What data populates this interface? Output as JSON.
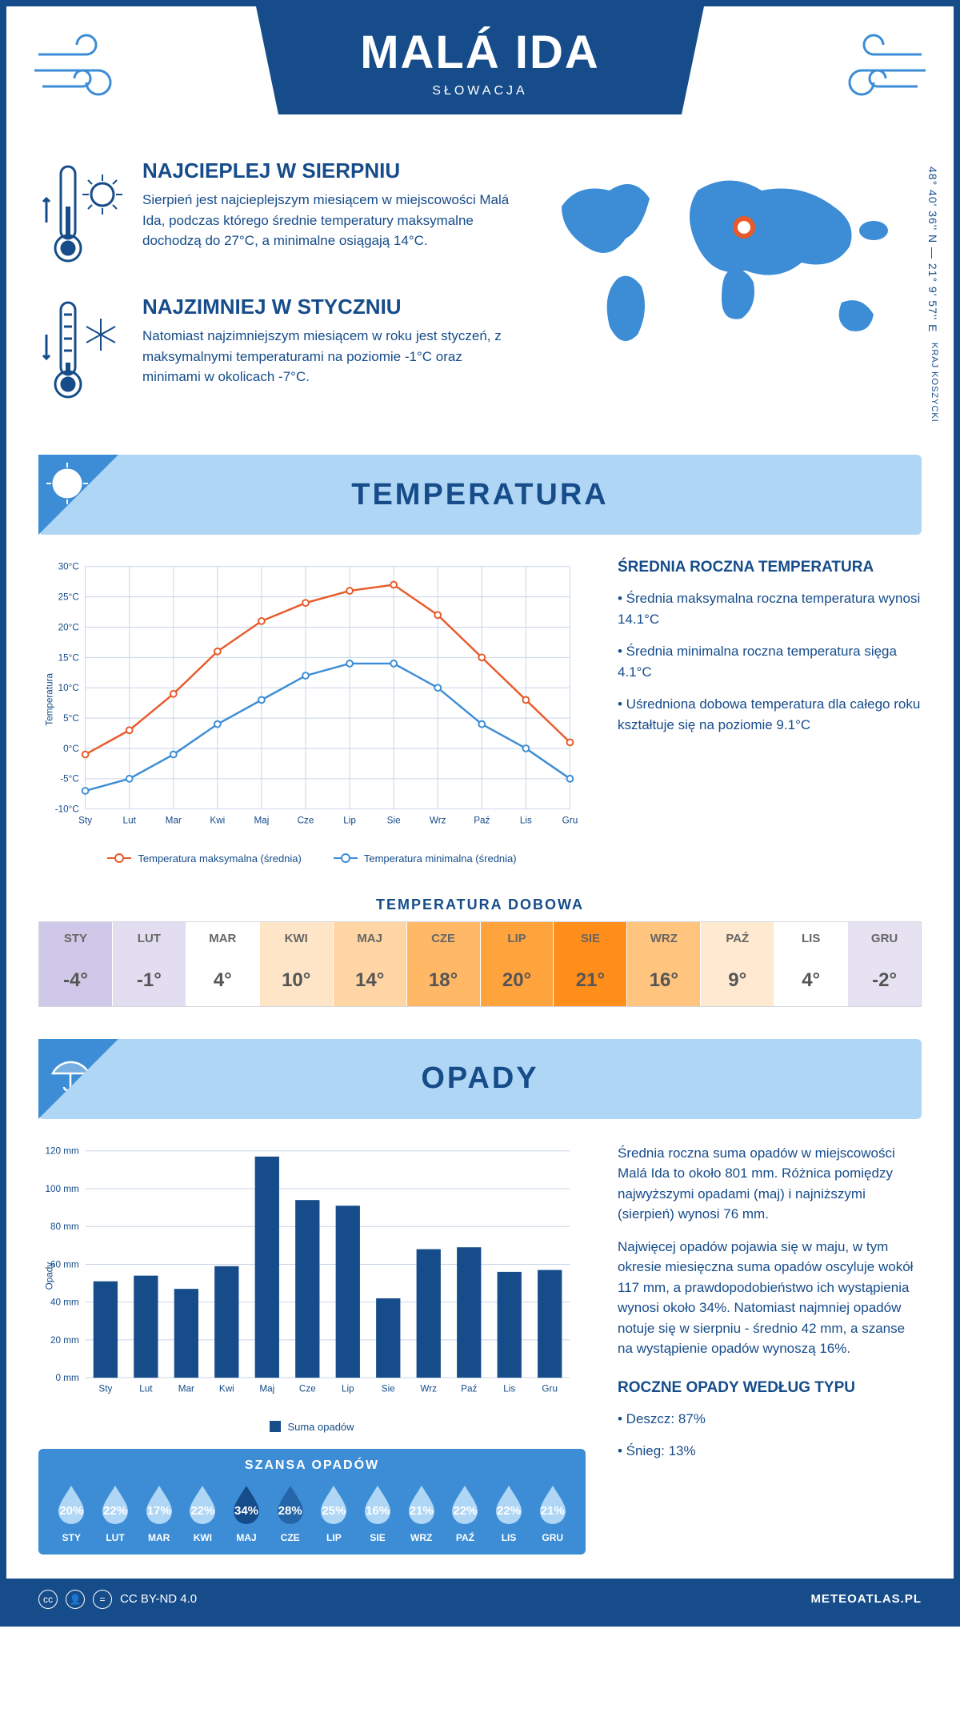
{
  "header": {
    "title": "MALÁ IDA",
    "subtitle": "SŁOWACJA"
  },
  "coords": "48° 40' 36'' N — 21° 9' 57'' E",
  "region": "KRAJ KOSZYCKI",
  "warmest": {
    "title": "NAJCIEPLEJ W SIERPNIU",
    "text": "Sierpień jest najcieplejszym miesiącem w miejscowości Malá Ida, podczas którego średnie temperatury maksymalne dochodzą do 27°C, a minimalne osiągają 14°C."
  },
  "coldest": {
    "title": "NAJZIMNIEJ W STYCZNIU",
    "text": "Natomiast najzimniejszym miesiącem w roku jest styczeń, z maksymalnymi temperaturami na poziomie -1°C oraz minimami w okolicach -7°C."
  },
  "temp_section": {
    "title": "TEMPERATURA"
  },
  "temp_chart": {
    "months": [
      "Sty",
      "Lut",
      "Mar",
      "Kwi",
      "Maj",
      "Cze",
      "Lip",
      "Sie",
      "Wrz",
      "Paź",
      "Lis",
      "Gru"
    ],
    "max_series": [
      -1,
      3,
      9,
      16,
      21,
      24,
      26,
      27,
      22,
      15,
      8,
      1
    ],
    "min_series": [
      -7,
      -5,
      -1,
      4,
      8,
      12,
      14,
      14,
      10,
      4,
      0,
      -5
    ],
    "ylabel": "Temperatura",
    "ylim": [
      -10,
      30
    ],
    "ytick_step": 5,
    "max_color": "#e85a2a",
    "min_color": "#3c8dd6",
    "legend_max": "Temperatura maksymalna (średnia)",
    "legend_min": "Temperatura minimalna (średnia)",
    "grid_color": "#c8d4e8",
    "bg": "#ffffff"
  },
  "temp_info": {
    "title": "ŚREDNIA ROCZNA TEMPERATURA",
    "lines": [
      "• Średnia maksymalna roczna temperatura wynosi 14.1°C",
      "• Średnia minimalna roczna temperatura sięga 4.1°C",
      "• Uśredniona dobowa temperatura dla całego roku kształtuje się na poziomie 9.1°C"
    ]
  },
  "dobowa": {
    "title": "TEMPERATURA DOBOWA",
    "months": [
      "STY",
      "LUT",
      "MAR",
      "KWI",
      "MAJ",
      "CZE",
      "LIP",
      "SIE",
      "WRZ",
      "PAŹ",
      "LIS",
      "GRU"
    ],
    "values": [
      "-4°",
      "-1°",
      "4°",
      "10°",
      "14°",
      "18°",
      "20°",
      "21°",
      "16°",
      "9°",
      "4°",
      "-2°"
    ],
    "colors": [
      "#d0c8e8",
      "#e2ddf0",
      "#ffffff",
      "#ffe5c7",
      "#ffd5a3",
      "#ffb866",
      "#ffa33d",
      "#ff8e1a",
      "#ffc47d",
      "#ffe9d0",
      "#ffffff",
      "#e6e2f2"
    ]
  },
  "opady_section": {
    "title": "OPADY"
  },
  "opady_chart": {
    "months": [
      "Sty",
      "Lut",
      "Mar",
      "Kwi",
      "Maj",
      "Cze",
      "Lip",
      "Sie",
      "Wrz",
      "Paź",
      "Lis",
      "Gru"
    ],
    "values": [
      51,
      54,
      47,
      59,
      117,
      94,
      91,
      42,
      68,
      69,
      56,
      57
    ],
    "ylabel": "Opady",
    "ylim": [
      0,
      120
    ],
    "ytick_step": 20,
    "bar_color": "#164c8a",
    "legend": "Suma opadów",
    "grid_color": "#c8d4e8"
  },
  "opady_info": {
    "p1": "Średnia roczna suma opadów w miejscowości Malá Ida to około 801 mm. Różnica pomiędzy najwyższymi opadami (maj) i najniższymi (sierpień) wynosi 76 mm.",
    "p2": "Najwięcej opadów pojawia się w maju, w tym okresie miesięczna suma opadów oscyluje wokół 117 mm, a prawdopodobieństwo ich wystąpienia wynosi około 34%. Natomiast najmniej opadów notuje się w sierpniu - średnio 42 mm, a szanse na wystąpienie opadów wynoszą 16%.",
    "type_title": "ROCZNE OPADY WEDŁUG TYPU",
    "rain": "• Deszcz: 87%",
    "snow": "• Śnieg: 13%"
  },
  "szansa": {
    "title": "SZANSA OPADÓW",
    "months": [
      "STY",
      "LUT",
      "MAR",
      "KWI",
      "MAJ",
      "CZE",
      "LIP",
      "SIE",
      "WRZ",
      "PAŹ",
      "LIS",
      "GRU"
    ],
    "values": [
      "20%",
      "22%",
      "17%",
      "22%",
      "34%",
      "28%",
      "25%",
      "16%",
      "21%",
      "22%",
      "22%",
      "21%"
    ],
    "fills": [
      "#b0d6f5",
      "#b0d6f5",
      "#b0d6f5",
      "#b0d6f5",
      "#164c8a",
      "#2566a8",
      "#b0d6f5",
      "#b0d6f5",
      "#b0d6f5",
      "#b0d6f5",
      "#b0d6f5",
      "#b0d6f5"
    ]
  },
  "footer": {
    "license": "CC BY-ND 4.0",
    "site": "METEOATLAS.PL"
  }
}
